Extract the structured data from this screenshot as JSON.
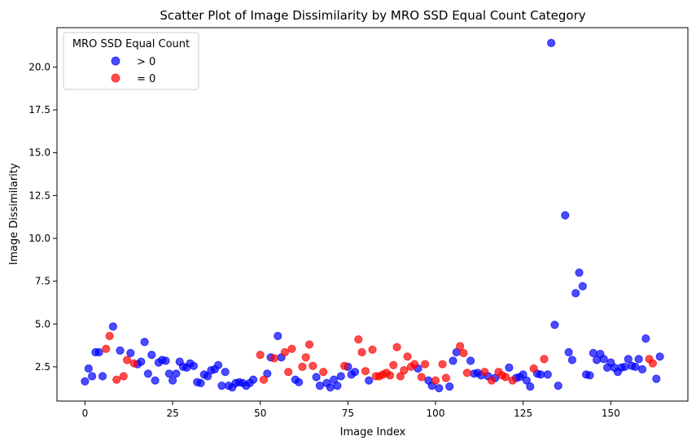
{
  "chart_data": {
    "type": "scatter",
    "title": "Scatter Plot of Image Dissimilarity by MRO SSD Equal Count Category",
    "xlabel": "Image Index",
    "ylabel": "Image Dissimilarity",
    "xlim": [
      -8,
      172
    ],
    "ylim": [
      0.5,
      22.3
    ],
    "xticks": [
      0,
      25,
      50,
      75,
      100,
      125,
      150
    ],
    "xtick_labels": [
      "0",
      "25",
      "50",
      "75",
      "100",
      "125",
      "150"
    ],
    "yticks": [
      2.5,
      5.0,
      7.5,
      10.0,
      12.5,
      15.0,
      17.5,
      20.0
    ],
    "ytick_labels": [
      "2.5",
      "5.0",
      "7.5",
      "10.0",
      "12.5",
      "15.0",
      "17.5",
      "20.0"
    ],
    "grid": false,
    "legend": {
      "title": "MRO SSD Equal Count",
      "position": "top-left"
    },
    "series": [
      {
        "name": "> 0",
        "color": "#0000ff",
        "points": [
          [
            0,
            1.65
          ],
          [
            1,
            2.4
          ],
          [
            2,
            1.95
          ],
          [
            3,
            3.35
          ],
          [
            4,
            3.35
          ],
          [
            5,
            1.95
          ],
          [
            8,
            4.85
          ],
          [
            10,
            3.45
          ],
          [
            13,
            3.3
          ],
          [
            15,
            2.65
          ],
          [
            16,
            2.8
          ],
          [
            17,
            3.95
          ],
          [
            18,
            2.1
          ],
          [
            19,
            3.2
          ],
          [
            20,
            1.7
          ],
          [
            21,
            2.75
          ],
          [
            22,
            2.9
          ],
          [
            23,
            2.85
          ],
          [
            24,
            2.1
          ],
          [
            25,
            1.7
          ],
          [
            26,
            2.1
          ],
          [
            27,
            2.8
          ],
          [
            28,
            2.5
          ],
          [
            29,
            2.45
          ],
          [
            30,
            2.7
          ],
          [
            31,
            2.55
          ],
          [
            32,
            1.6
          ],
          [
            33,
            1.55
          ],
          [
            34,
            2.05
          ],
          [
            35,
            1.95
          ],
          [
            36,
            2.3
          ],
          [
            37,
            2.35
          ],
          [
            38,
            2.6
          ],
          [
            39,
            1.4
          ],
          [
            40,
            2.2
          ],
          [
            41,
            1.4
          ],
          [
            42,
            1.3
          ],
          [
            43,
            1.55
          ],
          [
            44,
            1.6
          ],
          [
            45,
            1.55
          ],
          [
            46,
            1.4
          ],
          [
            47,
            1.55
          ],
          [
            48,
            1.75
          ],
          [
            52,
            2.1
          ],
          [
            53,
            3.05
          ],
          [
            55,
            4.3
          ],
          [
            56,
            3.05
          ],
          [
            60,
            1.75
          ],
          [
            61,
            1.6
          ],
          [
            66,
            1.9
          ],
          [
            67,
            1.4
          ],
          [
            69,
            1.55
          ],
          [
            70,
            1.3
          ],
          [
            71,
            1.75
          ],
          [
            72,
            1.4
          ],
          [
            73,
            1.95
          ],
          [
            75,
            2.5
          ],
          [
            76,
            2.05
          ],
          [
            77,
            2.2
          ],
          [
            81,
            1.7
          ],
          [
            95,
            2.4
          ],
          [
            98,
            1.7
          ],
          [
            99,
            1.4
          ],
          [
            101,
            1.25
          ],
          [
            104,
            1.35
          ],
          [
            105,
            2.85
          ],
          [
            106,
            3.35
          ],
          [
            110,
            2.85
          ],
          [
            111,
            2.1
          ],
          [
            112,
            2.15
          ],
          [
            113,
            2.0
          ],
          [
            115,
            1.95
          ],
          [
            117,
            1.85
          ],
          [
            121,
            2.45
          ],
          [
            123,
            1.85
          ],
          [
            124,
            1.9
          ],
          [
            125,
            2.05
          ],
          [
            126,
            1.7
          ],
          [
            127,
            1.35
          ],
          [
            129,
            2.1
          ],
          [
            130,
            2.05
          ],
          [
            132,
            2.05
          ],
          [
            133,
            21.4
          ],
          [
            134,
            4.95
          ],
          [
            135,
            1.4
          ],
          [
            137,
            11.35
          ],
          [
            138,
            3.35
          ],
          [
            139,
            2.9
          ],
          [
            140,
            6.8
          ],
          [
            141,
            8.0
          ],
          [
            142,
            7.2
          ],
          [
            143,
            2.05
          ],
          [
            144,
            2.0
          ],
          [
            145,
            3.3
          ],
          [
            146,
            2.9
          ],
          [
            147,
            3.25
          ],
          [
            148,
            2.95
          ],
          [
            149,
            2.45
          ],
          [
            150,
            2.75
          ],
          [
            151,
            2.45
          ],
          [
            152,
            2.2
          ],
          [
            153,
            2.45
          ],
          [
            154,
            2.5
          ],
          [
            155,
            2.95
          ],
          [
            156,
            2.55
          ],
          [
            157,
            2.5
          ],
          [
            158,
            2.95
          ],
          [
            159,
            2.35
          ],
          [
            160,
            4.15
          ],
          [
            163,
            1.8
          ],
          [
            164,
            3.1
          ]
        ]
      },
      {
        "name": "= 0",
        "color": "#ff0000",
        "points": [
          [
            6,
            3.55
          ],
          [
            7,
            4.3
          ],
          [
            9,
            1.75
          ],
          [
            11,
            1.95
          ],
          [
            12,
            2.9
          ],
          [
            14,
            2.7
          ],
          [
            50,
            3.2
          ],
          [
            51,
            1.75
          ],
          [
            54,
            3.0
          ],
          [
            57,
            3.35
          ],
          [
            58,
            2.2
          ],
          [
            59,
            3.55
          ],
          [
            62,
            2.5
          ],
          [
            63,
            3.05
          ],
          [
            64,
            3.8
          ],
          [
            65,
            2.55
          ],
          [
            68,
            2.2
          ],
          [
            74,
            2.55
          ],
          [
            78,
            4.1
          ],
          [
            79,
            3.35
          ],
          [
            80,
            2.25
          ],
          [
            82,
            3.5
          ],
          [
            83,
            1.95
          ],
          [
            84,
            1.95
          ],
          [
            85,
            2.05
          ],
          [
            86,
            2.15
          ],
          [
            87,
            2.0
          ],
          [
            88,
            2.6
          ],
          [
            89,
            3.65
          ],
          [
            90,
            1.95
          ],
          [
            91,
            2.3
          ],
          [
            92,
            3.1
          ],
          [
            93,
            2.5
          ],
          [
            94,
            2.65
          ],
          [
            96,
            1.9
          ],
          [
            97,
            2.65
          ],
          [
            100,
            1.7
          ],
          [
            102,
            2.65
          ],
          [
            103,
            1.85
          ],
          [
            107,
            3.7
          ],
          [
            108,
            3.3
          ],
          [
            109,
            2.15
          ],
          [
            114,
            2.2
          ],
          [
            116,
            1.7
          ],
          [
            118,
            2.2
          ],
          [
            119,
            2.0
          ],
          [
            120,
            1.9
          ],
          [
            122,
            1.7
          ],
          [
            128,
            2.4
          ],
          [
            131,
            2.95
          ],
          [
            161,
            2.95
          ],
          [
            162,
            2.7
          ]
        ]
      }
    ]
  }
}
